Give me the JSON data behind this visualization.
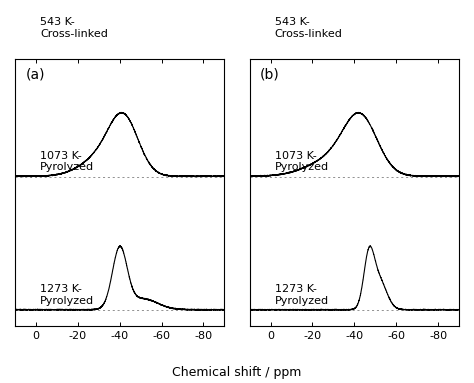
{
  "xlabel": "Chemical shift / ppm",
  "x_ticks": [
    0,
    -20,
    -40,
    -60,
    -80
  ],
  "panel_labels": [
    "(a)",
    "(b)"
  ],
  "spectrum_labels": [
    [
      "1273 K-\nPyrolyzed",
      "1073 K-\nPyrolyzed",
      "543 K-\nCross-linked"
    ],
    [
      "1273 K-\nPyrolyzed",
      "1073 K-\nPyrolyzed",
      "543 K-\nCross-linked"
    ]
  ],
  "label_fontsize": 8,
  "panel_label_fontsize": 10,
  "tick_fontsize": 8,
  "line_color": "#000000",
  "background_color": "#ffffff",
  "figsize": [
    4.74,
    3.83
  ],
  "dpi": 100
}
